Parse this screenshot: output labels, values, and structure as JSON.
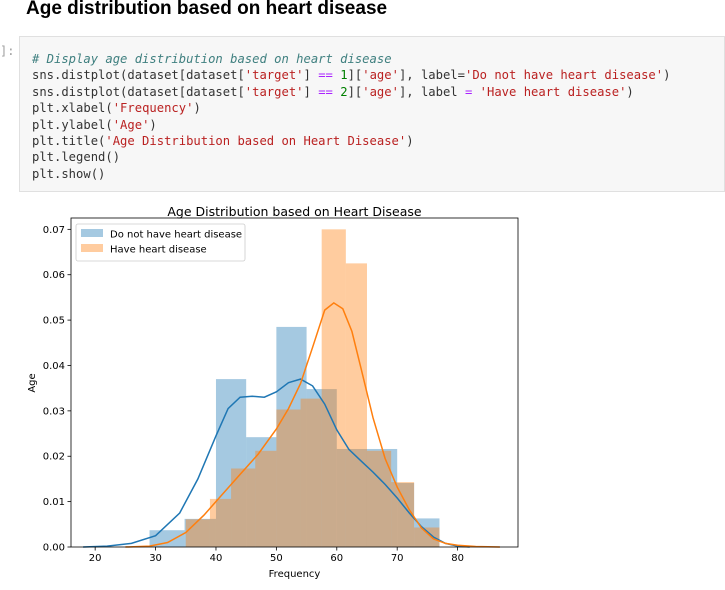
{
  "page": {
    "heading": "Age distribution based on heart disease"
  },
  "cell": {
    "prompt": "]:",
    "code": {
      "l1": "# Display age distribution based on heart disease",
      "l2": {
        "a": "sns.distplot(dataset[dataset[",
        "s1": "'target'",
        "b": "] ",
        "op": "==",
        "c": " ",
        "n": "1",
        "d": "][",
        "s2": "'age'",
        "e": "], label=",
        "s3": "'Do not have heart disease'",
        "f": ")"
      },
      "l3": {
        "a": "sns.distplot(dataset[dataset[",
        "s1": "'target'",
        "b": "] ",
        "op": "==",
        "c": " ",
        "n": "2",
        "d": "][",
        "s2": "'age'",
        "e": "], label ",
        "op2": "=",
        "g": " ",
        "s3": "'Have heart disease'",
        "f": ")"
      },
      "l4": {
        "a": "plt.xlabel(",
        "s": "'Frequency'",
        "b": ")"
      },
      "l5": {
        "a": "plt.ylabel(",
        "s": "'Age'",
        "b": ")"
      },
      "l6": {
        "a": "plt.title(",
        "s": "'Age Distribution based on Heart Disease'",
        "b": ")"
      },
      "l7": "plt.legend()",
      "l8": "plt.show()"
    }
  },
  "chart_data": {
    "type": "histogram",
    "title": "Age Distribution based on Heart Disease",
    "xlabel": "Frequency",
    "ylabel": "Age",
    "xlim": [
      16,
      90
    ],
    "ylim": [
      0,
      0.0725
    ],
    "xticks": [
      20,
      30,
      40,
      50,
      60,
      70,
      80
    ],
    "yticks": [
      0.0,
      0.01,
      0.02,
      0.03,
      0.04,
      0.05,
      0.06,
      0.07
    ],
    "ytick_labels": [
      "0.00",
      "0.01",
      "0.02",
      "0.03",
      "0.04",
      "0.05",
      "0.06",
      "0.07"
    ],
    "legend_position": "upper-left",
    "grid": false,
    "series": [
      {
        "name": "Do not have heart disease",
        "color": "#1f77b4",
        "bar_alpha": 0.4,
        "bins": [
          {
            "x0": 29.0,
            "x1": 34.8,
            "density": 0.0037
          },
          {
            "x0": 34.8,
            "x1": 40.0,
            "density": 0.0062
          },
          {
            "x0": 40.0,
            "x1": 45.0,
            "density": 0.037
          },
          {
            "x0": 45.0,
            "x1": 50.0,
            "density": 0.0242
          },
          {
            "x0": 50.0,
            "x1": 55.0,
            "density": 0.0485
          },
          {
            "x0": 55.0,
            "x1": 60.0,
            "density": 0.0348
          },
          {
            "x0": 60.0,
            "x1": 65.0,
            "density": 0.0216
          },
          {
            "x0": 65.0,
            "x1": 70.0,
            "density": 0.0216
          },
          {
            "x0": 70.0,
            "x1": 72.8,
            "density": 0.0141
          },
          {
            "x0": 72.8,
            "x1": 77.0,
            "density": 0.0063
          }
        ],
        "kde": [
          [
            18,
            0.0
          ],
          [
            22,
            0.0002
          ],
          [
            26,
            0.0008
          ],
          [
            30,
            0.0025
          ],
          [
            34,
            0.0075
          ],
          [
            37,
            0.015
          ],
          [
            40,
            0.0245
          ],
          [
            42,
            0.0305
          ],
          [
            44,
            0.033
          ],
          [
            46,
            0.0332
          ],
          [
            48,
            0.033
          ],
          [
            50,
            0.0342
          ],
          [
            52,
            0.0362
          ],
          [
            54,
            0.037
          ],
          [
            56,
            0.0355
          ],
          [
            58,
            0.0315
          ],
          [
            60,
            0.0258
          ],
          [
            62,
            0.0215
          ],
          [
            64,
            0.019
          ],
          [
            66,
            0.0165
          ],
          [
            68,
            0.0138
          ],
          [
            70,
            0.0108
          ],
          [
            72,
            0.0075
          ],
          [
            74,
            0.0045
          ],
          [
            76,
            0.0022
          ],
          [
            78,
            0.0008
          ],
          [
            80,
            0.0002
          ],
          [
            82,
            0.0
          ]
        ]
      },
      {
        "name": "Have heart disease",
        "color": "#ff7f0e",
        "bar_alpha": 0.4,
        "bins": [
          {
            "x0": 35.0,
            "x1": 39.0,
            "density": 0.0061
          },
          {
            "x0": 39.0,
            "x1": 42.5,
            "density": 0.0106
          },
          {
            "x0": 42.5,
            "x1": 46.5,
            "density": 0.0173
          },
          {
            "x0": 46.5,
            "x1": 50.0,
            "density": 0.0212
          },
          {
            "x0": 50.0,
            "x1": 54.0,
            "density": 0.0303
          },
          {
            "x0": 54.0,
            "x1": 57.5,
            "density": 0.0327
          },
          {
            "x0": 57.5,
            "x1": 61.5,
            "density": 0.07
          },
          {
            "x0": 61.5,
            "x1": 65.0,
            "density": 0.0625
          },
          {
            "x0": 65.0,
            "x1": 69.0,
            "density": 0.0212
          },
          {
            "x0": 69.0,
            "x1": 72.8,
            "density": 0.0143
          },
          {
            "x0": 72.8,
            "x1": 77.0,
            "density": 0.0043
          }
        ],
        "kde": [
          [
            25,
            0.0
          ],
          [
            29,
            0.0002
          ],
          [
            32,
            0.001
          ],
          [
            35,
            0.0032
          ],
          [
            38,
            0.007
          ],
          [
            41,
            0.0115
          ],
          [
            44,
            0.016
          ],
          [
            47,
            0.0205
          ],
          [
            50,
            0.026
          ],
          [
            52,
            0.0305
          ],
          [
            54,
            0.036
          ],
          [
            56,
            0.044
          ],
          [
            58,
            0.0522
          ],
          [
            59.5,
            0.0538
          ],
          [
            61,
            0.0525
          ],
          [
            62.5,
            0.0475
          ],
          [
            64,
            0.0395
          ],
          [
            66,
            0.0285
          ],
          [
            68,
            0.0195
          ],
          [
            70,
            0.0132
          ],
          [
            72,
            0.0082
          ],
          [
            74,
            0.0042
          ],
          [
            76,
            0.0018
          ],
          [
            78,
            0.0008
          ],
          [
            80,
            0.0004
          ],
          [
            83,
            0.0001
          ],
          [
            87,
            0.0
          ]
        ]
      }
    ]
  }
}
